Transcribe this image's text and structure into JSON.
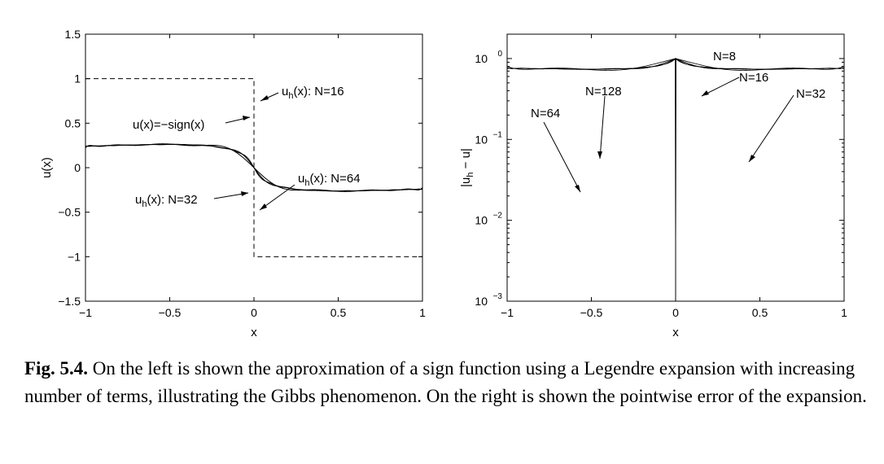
{
  "chart_data": [
    {
      "type": "line",
      "title": "",
      "xlabel": "x",
      "ylabel": "u(x)",
      "xlim": [
        -1,
        1
      ],
      "ylim": [
        -1.5,
        1.5
      ],
      "xticks": [
        -1,
        -0.5,
        0,
        0.5,
        1
      ],
      "xtick_labels": [
        "−1",
        "−0.5",
        "0",
        "0.5",
        "1"
      ],
      "yticks": [
        -1.5,
        -1,
        -0.5,
        0,
        0.5,
        1,
        1.5
      ],
      "ytick_labels": [
        "−1.5",
        "−1",
        "−0.5",
        "0",
        "0.5",
        "1",
        "1.5"
      ],
      "grid": false,
      "series": [
        {
          "name": "u(x)=−sign(x)",
          "style": "dashed",
          "function": "-sign(x)"
        },
        {
          "name": "N=16",
          "style": "solid",
          "expansion": "Legendre",
          "terms": 16
        },
        {
          "name": "N=32",
          "style": "solid",
          "expansion": "Legendre",
          "terms": 32
        },
        {
          "name": "N=64",
          "style": "solid",
          "expansion": "Legendre",
          "terms": 64
        }
      ],
      "annotations": [
        {
          "text_main": "u",
          "text_sub": "h",
          "text_rest": "(x): N=16"
        },
        {
          "text_main": "u(x)=−sign(x)",
          "text_sub": "",
          "text_rest": ""
        },
        {
          "text_main": "u",
          "text_sub": "h",
          "text_rest": "(x): N=64"
        },
        {
          "text_main": "u",
          "text_sub": "h",
          "text_rest": "(x): N=32"
        }
      ]
    },
    {
      "type": "line",
      "title": "",
      "xlabel": "x",
      "ylabel_main": "|u",
      "ylabel_sub": "h",
      "ylabel_rest": " − u|",
      "xlim": [
        -1,
        1
      ],
      "ylim": [
        0.001,
        2
      ],
      "log_y": true,
      "xticks": [
        -1,
        -0.5,
        0,
        0.5,
        1
      ],
      "xtick_labels": [
        "−1",
        "−0.5",
        "0",
        "0.5",
        "1"
      ],
      "yticks": [
        0.001,
        0.01,
        0.1,
        1
      ],
      "ytick_bases": [
        "10",
        "10",
        "10",
        "10"
      ],
      "ytick_exps": [
        "−3",
        "−2",
        "−1",
        "0"
      ],
      "grid": false,
      "series": [
        {
          "name": "N=8",
          "expansion": "Legendre",
          "terms": 8
        },
        {
          "name": "N=16",
          "expansion": "Legendre",
          "terms": 16
        },
        {
          "name": "N=32",
          "expansion": "Legendre",
          "terms": 32
        },
        {
          "name": "N=64",
          "expansion": "Legendre",
          "terms": 64
        },
        {
          "name": "N=128",
          "expansion": "Legendre",
          "terms": 128
        }
      ],
      "annotations": [
        "N=8",
        "N=16",
        "N=32",
        "N=64",
        "N=128"
      ]
    }
  ],
  "caption": {
    "label": "Fig. 5.4.",
    "text": "On the left is shown the approximation of a sign function using a Legendre expansion with increasing number of terms, illustrating the Gibbs phenomenon. On the right is shown the pointwise error of the expansion."
  }
}
